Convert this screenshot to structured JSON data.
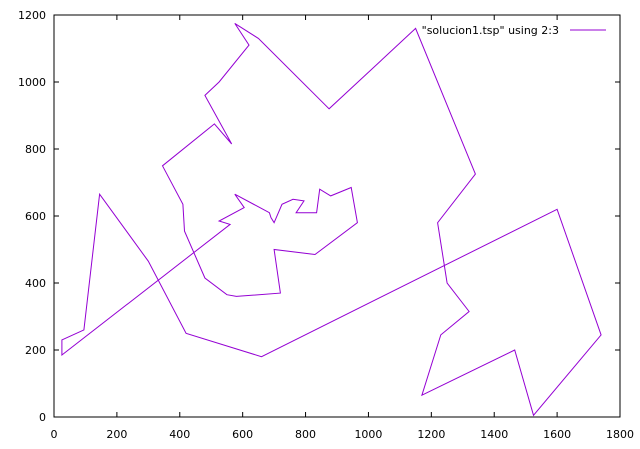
{
  "chart_data": {
    "type": "line",
    "title": "",
    "xlabel": "",
    "ylabel": "",
    "xlim": [
      0,
      1800
    ],
    "ylim": [
      0,
      1200
    ],
    "xticks": [
      "0",
      "200",
      "400",
      "600",
      "800",
      "1000",
      "1200",
      "1400",
      "1600",
      "1800"
    ],
    "yticks": [
      "0",
      "200",
      "400",
      "600",
      "800",
      "1000",
      "1200"
    ],
    "grid": false,
    "legend_position": "top-right",
    "series": [
      {
        "name": "\"solucion1.tsp\" using 2:3",
        "color": "#9400d3",
        "points": [
          [
            565,
            815
          ],
          [
            510,
            875
          ],
          [
            345,
            750
          ],
          [
            410,
            635
          ],
          [
            415,
            555
          ],
          [
            480,
            415
          ],
          [
            550,
            365
          ],
          [
            580,
            360
          ],
          [
            720,
            370
          ],
          [
            700,
            500
          ],
          [
            830,
            485
          ],
          [
            965,
            580
          ],
          [
            945,
            685
          ],
          [
            880,
            660
          ],
          [
            845,
            680
          ],
          [
            835,
            610
          ],
          [
            770,
            610
          ],
          [
            795,
            645
          ],
          [
            760,
            650
          ],
          [
            725,
            635
          ],
          [
            700,
            580
          ],
          [
            690,
            595
          ],
          [
            685,
            610
          ],
          [
            575,
            665
          ],
          [
            605,
            625
          ],
          [
            525,
            585
          ],
          [
            560,
            575
          ],
          [
            25,
            185
          ],
          [
            25,
            230
          ],
          [
            95,
            260
          ],
          [
            145,
            665
          ],
          [
            300,
            465
          ],
          [
            420,
            250
          ],
          [
            660,
            180
          ],
          [
            1600,
            620
          ],
          [
            1740,
            245
          ],
          [
            1525,
            5
          ],
          [
            1465,
            200
          ],
          [
            1170,
            65
          ],
          [
            1230,
            245
          ],
          [
            1320,
            315
          ],
          [
            1250,
            400
          ],
          [
            1220,
            580
          ],
          [
            1340,
            725
          ],
          [
            1150,
            1160
          ],
          [
            875,
            920
          ],
          [
            650,
            1130
          ],
          [
            575,
            1175
          ],
          [
            620,
            1110
          ],
          [
            525,
            1000
          ],
          [
            480,
            960
          ],
          [
            565,
            815
          ]
        ]
      }
    ]
  }
}
